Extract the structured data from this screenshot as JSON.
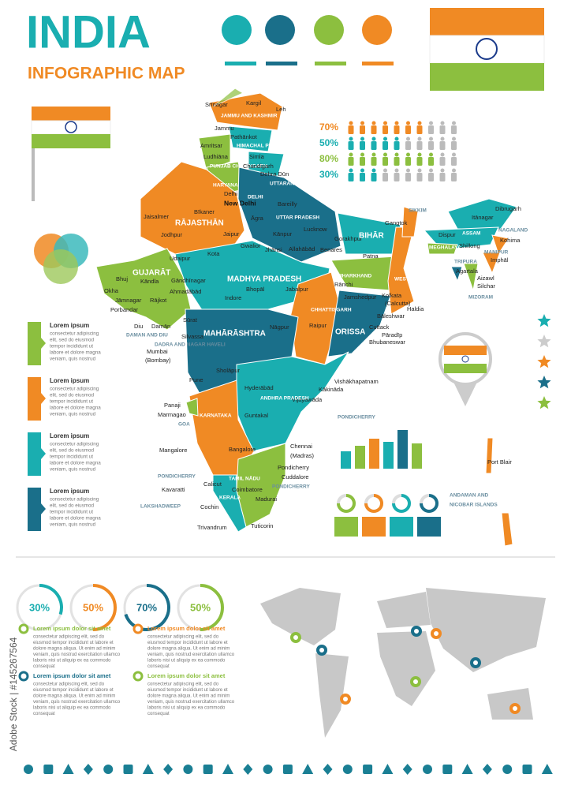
{
  "header": {
    "title": "INDIA",
    "subtitle": "INFOGRAPHIC MAP"
  },
  "people_stats": [
    {
      "label": "70%",
      "value": 70,
      "color": "#f08a24"
    },
    {
      "label": "50%",
      "value": 50,
      "color": "#1aaeb0"
    },
    {
      "label": "80%",
      "value": 80,
      "color": "#8cbf3f"
    },
    {
      "label": "30%",
      "value": 30,
      "color": "#1aaeb0"
    }
  ],
  "side_notes": [
    {
      "title": "Lorem ipsum",
      "color": "#8cbf3f",
      "lines": [
        "consectetur adipiscing",
        "elit, sed do eiusmod",
        "tempor incididunt ut",
        "labore et dolore magna",
        "veniam, quis nostrud"
      ]
    },
    {
      "title": "Lorem ipsum",
      "color": "#f08a24",
      "lines": [
        "consectetur adipiscing",
        "elit, sed do eiusmod",
        "tempor incididunt ut",
        "labore et dolore magna",
        "veniam, quis nostrud"
      ]
    },
    {
      "title": "Lorem ipsum",
      "color": "#1aaeb0",
      "lines": [
        "consectetur adipiscing",
        "elit, sed do eiusmod",
        "tempor incididunt ut",
        "labore et dolore magna",
        "veniam, quis nostrud"
      ]
    },
    {
      "title": "Lorem ipsum",
      "color": "#1a6f8a",
      "lines": [
        "consectetur adipiscing",
        "elit, sed do eiusmod",
        "tempor incididunt ut",
        "labore et dolore magna",
        "veniam, quis nostrud"
      ]
    }
  ],
  "map": {
    "labels": [
      "Srīnagar",
      "Kargil",
      "Leh",
      "JAMMU AND KASHMIR",
      "Jammu",
      "Pathānkot",
      "HIMACHAL PRADESH",
      "Amritsar",
      "Ludhiāna",
      "Simla",
      "PUNJAB CHANDIGARH",
      "Chandigarh",
      "Dehra Dūn",
      "UTTARANCHAL",
      "HARYANA",
      "Delhi",
      "DELHI",
      "New Delhi",
      "Bareilly",
      "RĀJASTHĀN",
      "Jaisalmer",
      "Bīkaner",
      "Jodhpur",
      "Jaipur",
      "Āgra",
      "UTTAR PRADESH",
      "Lucknow",
      "Kānpur",
      "Gorakhpur",
      "Allahābād",
      "Benares",
      "BIHĀR",
      "Patna",
      "Gangtok",
      "SIKKIM",
      "ARUNACHAL PRADESH",
      "Itānagar",
      "Dibrugarh",
      "ASSAM",
      "NAGALAND",
      "Dispur",
      "Kohima",
      "MEGHALAYA",
      "Shillong",
      "MANIPUR",
      "Imphāl",
      "TRIPURA",
      "Agartala",
      "Aizawl",
      "Silchar",
      "MIZORAM",
      "Udaipur",
      "Kota",
      "Gwalior",
      "Jhānsi",
      "MADHYA PRADESH",
      "Bhopāl",
      "Jabalpur",
      "Indore",
      "GUJARĀT",
      "Bhuj",
      "Kāndla",
      "Gāndhīnagar",
      "Ahmadābād",
      "Okha",
      "Jāmnagar",
      "Rājkot",
      "Porbandar",
      "Diu",
      "Damān",
      "DAMAN AND DIU",
      "Sūrat",
      "Silvassa",
      "DADRA AND NAGAR HAVELI",
      "Mumbai",
      "(Bombay)",
      "MAHĀRĀSHTRA",
      "Nāgpur",
      "Pune",
      "Sholāpur",
      "JHARKHAND",
      "Rānchi",
      "Jamshedpur",
      "WEST BENGAL",
      "Kolkata",
      "(Calcutta)",
      "Haldia",
      "CHHATTISGARH",
      "Raipur",
      "ORISSA",
      "Bāleshwar",
      "Cuttack",
      "Pāradīp",
      "Bhubaneswar",
      "Vishākhapatnam",
      "Kākināda",
      "Vijayawāda",
      "PONDICHERRY",
      "Hyderābād",
      "ANDHRA PRADESH",
      "Guntakal",
      "Panaji",
      "Marmagao",
      "GOA",
      "KARNATAKA",
      "Mangalore",
      "Bangalore",
      "Chennai",
      "(Madras)",
      "TAMIL NĀDU",
      "Pondicherry",
      "Cuddalore",
      "PONDICHERRY",
      "PONDICHERRY",
      "Calicut",
      "Coimbatore",
      "Madurai",
      "KERALA",
      "Cochin",
      "Kavaratti",
      "LAKSHADWEEP",
      "Trivandrum",
      "Tuticorin",
      "Port Blair",
      "ANDAMAN AND",
      "NICOBAR ISLANDS"
    ]
  },
  "progress_rings": [
    {
      "label": "30%",
      "value": 30,
      "color": "#1aaeb0"
    },
    {
      "label": "50%",
      "value": 50,
      "color": "#f08a24"
    },
    {
      "label": "70%",
      "value": 70,
      "color": "#1a6f8a"
    },
    {
      "label": "50%",
      "value": 50,
      "color": "#8cbf3f"
    }
  ],
  "bottom_notes": [
    {
      "title": "Lorem ipsum dolor sit amet",
      "color": "#8cbf3f",
      "lines": [
        "consectetur adipiscing elit, sed do",
        "eiusmod tempor incididunt ut labore et",
        "dolore magna aliqua. Ut enim ad minim",
        "veniam, quis nostrud exercitation ullamco",
        "laboris nisi ut aliquip ex ea commodo",
        "consequat"
      ]
    },
    {
      "title": "Lorem ipsum dolor sit amet",
      "color": "#f08a24",
      "lines": [
        "consectetur adipiscing elit, sed do",
        "eiusmod tempor incididunt ut labore et",
        "dolore magna aliqua. Ut enim ad minim",
        "veniam, quis nostrud exercitation ullamco",
        "laboris nisi ut aliquip ex ea commodo",
        "consequat"
      ]
    },
    {
      "title": "Lorem ipsum dolor sit amet",
      "color": "#1a6f8a",
      "lines": [
        "consectetur adipiscing elit, sed do",
        "eiusmod tempor incididunt ut labore et",
        "dolore magna aliqua. Ut enim ad minim",
        "veniam, quis nostrud exercitation ullamco",
        "laboris nisi ut aliquip ex ea commodo",
        "consequat"
      ]
    },
    {
      "title": "Lorem ipsum dolor sit amet",
      "color": "#8cbf3f",
      "lines": [
        "consectetur adipiscing elit, sed do",
        "eiusmod tempor incididunt ut labore et",
        "dolore magna aliqua. Ut enim ad minim",
        "veniam, quis nostrud exercitation ullamco",
        "laboris nisi ut aliquip ex ea commodo",
        "consequat"
      ]
    }
  ],
  "watermark": "Adobe Stock | #145267564"
}
